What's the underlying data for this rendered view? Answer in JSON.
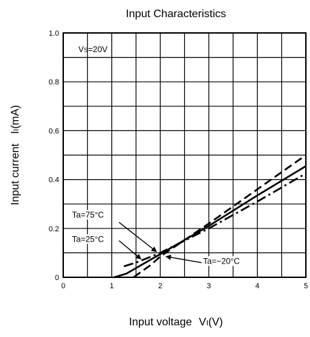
{
  "chart_data": {
    "type": "line",
    "title": "Input Characteristics",
    "xlabel": "Input voltage",
    "xlabel_symbol": "V",
    "xlabel_subscript": "I",
    "xlabel_unit": "(V)",
    "ylabel": "Input current",
    "ylabel_symbol": "I",
    "ylabel_subscript": "I",
    "ylabel_unit": "(mA)",
    "xlim": [
      0,
      5
    ],
    "ylim": [
      0,
      1.0
    ],
    "grid": true,
    "x_ticks": [
      0,
      1,
      2,
      3,
      4,
      5
    ],
    "x_tick_labels": [
      "0",
      "1",
      "2",
      "3",
      "4",
      "5"
    ],
    "y_ticks": [
      0,
      0.2,
      0.4,
      0.6,
      0.8,
      1.0
    ],
    "y_tick_labels": [
      "0",
      "0.2",
      "0.4",
      "0.6",
      "0.8",
      "1.0"
    ],
    "condition": {
      "symbol": "V",
      "subscript": "S",
      "value": "=20V"
    },
    "series": [
      {
        "name": "Ta=75°C",
        "style": "dash-dot",
        "color": "#000000",
        "x": [
          1.25,
          1.5,
          2.0,
          3.0,
          4.0,
          5.0
        ],
        "y": [
          0.045,
          0.06,
          0.1,
          0.2,
          0.31,
          0.425
        ]
      },
      {
        "name": "Ta=25°C",
        "style": "solid",
        "color": "#000000",
        "x": [
          1.05,
          1.3,
          2.0,
          3.0,
          4.0,
          5.0
        ],
        "y": [
          0.0,
          0.015,
          0.095,
          0.21,
          0.335,
          0.455
        ]
      },
      {
        "name": "Ta=−20°C",
        "style": "dashed",
        "color": "#000000",
        "x": [
          1.45,
          1.8,
          2.0,
          3.0,
          4.0,
          5.0
        ],
        "y": [
          0.0,
          0.05,
          0.085,
          0.22,
          0.36,
          0.5
        ]
      }
    ],
    "annotations": [
      {
        "text": "Ta=75°C",
        "series": 0
      },
      {
        "text": "Ta=25°C",
        "series": 1
      },
      {
        "text": "Ta=−20°C",
        "series": 2
      }
    ]
  }
}
